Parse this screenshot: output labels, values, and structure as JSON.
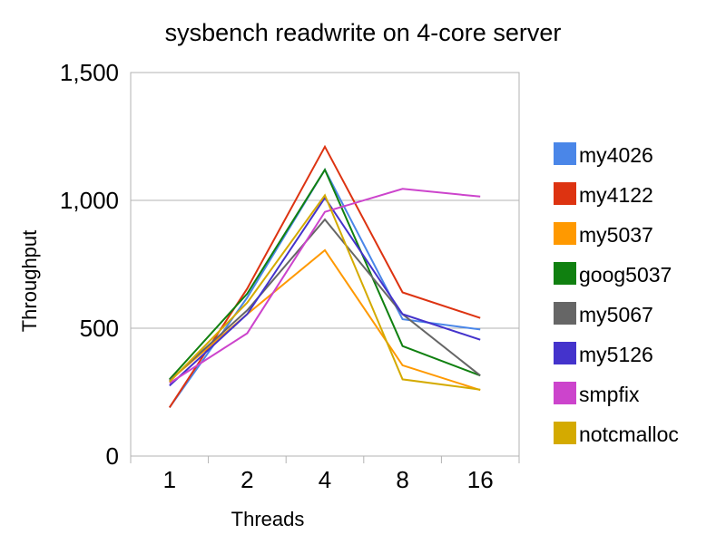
{
  "chart_data": {
    "type": "line",
    "title": "sysbench readwrite on 4-core server",
    "xlabel": "Threads",
    "ylabel": "Throughput",
    "categories": [
      "1",
      "2",
      "4",
      "8",
      "16"
    ],
    "ylim": [
      0,
      1500
    ],
    "yticks": [
      0,
      500,
      1000,
      1500
    ],
    "ytick_labels": [
      "0",
      "500",
      "1,000",
      "1,500"
    ],
    "grid": true,
    "legend_position": "right",
    "series": [
      {
        "name": "my4026",
        "color": "#4A86E8",
        "values": [
          190,
          620,
          1120,
          535,
          495
        ]
      },
      {
        "name": "my4122",
        "color": "#DD3311",
        "values": [
          190,
          655,
          1210,
          640,
          540
        ]
      },
      {
        "name": "my5037",
        "color": "#FF9900",
        "values": [
          295,
          555,
          805,
          355,
          258
        ]
      },
      {
        "name": "goog5037",
        "color": "#108010",
        "values": [
          300,
          635,
          1120,
          430,
          315
        ]
      },
      {
        "name": "my5067",
        "color": "#666666",
        "values": [
          295,
          570,
          925,
          555,
          315
        ]
      },
      {
        "name": "my5126",
        "color": "#4433CC",
        "values": [
          275,
          555,
          1010,
          555,
          455
        ]
      },
      {
        "name": "smpfix",
        "color": "#CC44CC",
        "values": [
          285,
          480,
          955,
          1045,
          1015
        ]
      },
      {
        "name": "notcmalloc",
        "color": "#D4AA00",
        "values": [
          290,
          600,
          1020,
          300,
          260
        ]
      }
    ]
  }
}
